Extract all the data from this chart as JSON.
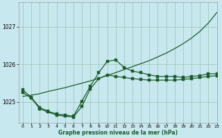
{
  "bg_color": "#c8e8f0",
  "grid_color": "#a0c8b8",
  "line_color": "#1a5c28",
  "xlabel": "Graphe pression niveau de la mer (hPa)",
  "xlim": [
    -0.5,
    23
  ],
  "ylim": [
    1024.45,
    1027.65
  ],
  "yticks": [
    1025,
    1026,
    1027
  ],
  "xticks": [
    0,
    1,
    2,
    3,
    4,
    5,
    6,
    7,
    8,
    9,
    10,
    11,
    12,
    13,
    14,
    15,
    16,
    17,
    18,
    19,
    20,
    21,
    22,
    23
  ],
  "series_smooth": {
    "x": [
      0,
      1,
      2,
      3,
      4,
      5,
      6,
      7,
      8,
      9,
      10,
      11,
      12,
      13,
      14,
      15,
      16,
      17,
      18,
      19,
      20,
      21,
      22,
      23
    ],
    "y": [
      1025.15,
      1025.18,
      1025.22,
      1025.28,
      1025.33,
      1025.38,
      1025.44,
      1025.5,
      1025.56,
      1025.63,
      1025.7,
      1025.78,
      1025.86,
      1025.94,
      1026.02,
      1026.1,
      1026.2,
      1026.3,
      1026.42,
      1026.55,
      1026.7,
      1026.88,
      1027.1,
      1027.38
    ]
  },
  "series_markers1": {
    "x": [
      0,
      1,
      2,
      3,
      4,
      5,
      6,
      7,
      8,
      9,
      10,
      11,
      12,
      13,
      14,
      15,
      16,
      17,
      18,
      19,
      20,
      21,
      22,
      23
    ],
    "y": [
      1025.25,
      1025.1,
      1024.82,
      1024.73,
      1024.65,
      1024.62,
      1024.6,
      1024.88,
      1025.35,
      1025.62,
      1025.72,
      1025.68,
      1025.65,
      1025.62,
      1025.6,
      1025.58,
      1025.58,
      1025.58,
      1025.58,
      1025.6,
      1025.62,
      1025.65,
      1025.68,
      1025.7
    ]
  },
  "series_markers2": {
    "x": [
      0,
      1,
      2,
      3,
      4,
      5,
      6,
      7,
      8,
      9,
      10,
      11,
      12,
      13,
      14,
      15,
      16,
      17,
      18,
      19,
      20,
      21,
      22,
      23
    ],
    "y": [
      1025.32,
      1025.12,
      1024.85,
      1024.75,
      1024.68,
      1024.65,
      1024.62,
      1025.02,
      1025.42,
      1025.78,
      1026.08,
      1026.12,
      1025.92,
      1025.82,
      1025.78,
      1025.72,
      1025.68,
      1025.68,
      1025.68,
      1025.65,
      1025.68,
      1025.7,
      1025.75,
      1025.75
    ]
  }
}
